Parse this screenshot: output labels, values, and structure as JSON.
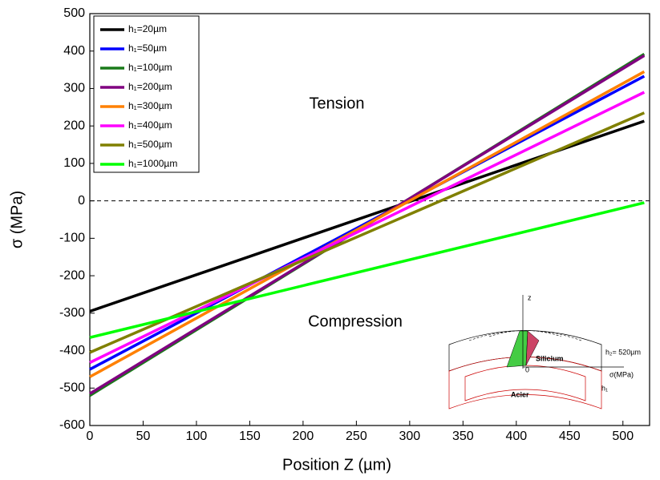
{
  "chart_data": {
    "type": "line",
    "x_label": "Position Z (µm)",
    "y_label": "σ (MPa)",
    "x": [
      0,
      520
    ],
    "series": [
      {
        "name": "h₁=20µm",
        "color": "#000000",
        "values": [
          -295,
          213
        ]
      },
      {
        "name": "h₁=50µm",
        "color": "#0000ff",
        "values": [
          -450,
          333
        ]
      },
      {
        "name": "h₁=100µm",
        "color": "#1a7a1a",
        "values": [
          -520,
          392
        ]
      },
      {
        "name": "h₁=200µm",
        "color": "#800080",
        "values": [
          -515,
          388
        ]
      },
      {
        "name": "h₁=300µm",
        "color": "#ff8000",
        "values": [
          -470,
          345
        ]
      },
      {
        "name": "h₁=400µm",
        "color": "#ff00ff",
        "values": [
          -432,
          290
        ]
      },
      {
        "name": "h₁=500µm",
        "color": "#808000",
        "values": [
          -405,
          235
        ]
      },
      {
        "name": "h₁=1000µm",
        "color": "#00ff00",
        "values": [
          -365,
          -5
        ]
      }
    ],
    "xlim": [
      0,
      525
    ],
    "ylim": [
      -600,
      500
    ],
    "xticks": [
      0,
      50,
      100,
      150,
      200,
      250,
      300,
      350,
      400,
      450,
      500
    ],
    "yticks": [
      -600,
      -500,
      -400,
      -300,
      -200,
      -100,
      0,
      100,
      200,
      300,
      400,
      500
    ],
    "reference_line": 0,
    "legend": "upper-left",
    "annotations": [
      "Tension",
      "Compression"
    ],
    "inset": {
      "axis_z": "z",
      "h2": "h₂= 520µm",
      "top": "Silicium",
      "sigma": "σ(MPa)",
      "origin": "0",
      "bottom": "Acier",
      "h1": "h₁"
    }
  }
}
